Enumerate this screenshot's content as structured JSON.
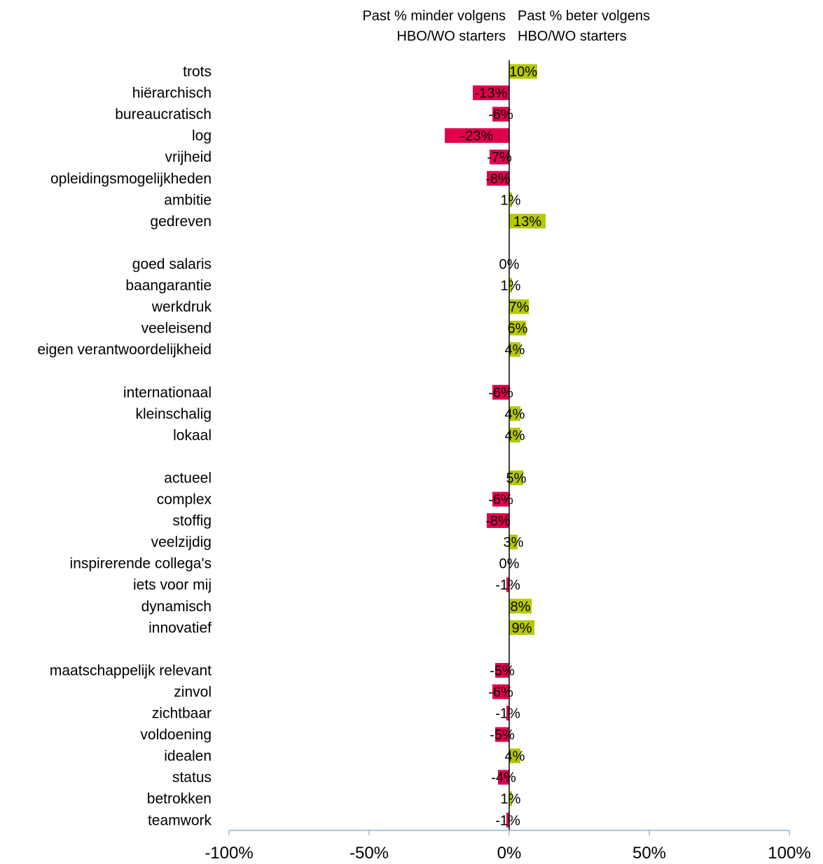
{
  "chart_data": {
    "type": "bar",
    "orientation": "horizontal",
    "header_left": [
      "Past % minder volgens",
      "HBO/WO starters"
    ],
    "header_right": [
      "Past % beter volgens",
      "HBO/WO starters"
    ],
    "groups": [
      [
        {
          "label": "trots",
          "value": 10
        },
        {
          "label": "hiërarchisch",
          "value": -13
        },
        {
          "label": "bureaucratisch",
          "value": -6
        },
        {
          "label": "log",
          "value": -23
        },
        {
          "label": "vrijheid",
          "value": -7
        },
        {
          "label": "opleidingsmogelijkheden",
          "value": -8
        },
        {
          "label": "ambitie",
          "value": 1
        },
        {
          "label": "gedreven",
          "value": 13
        }
      ],
      [
        {
          "label": "goed salaris",
          "value": 0
        },
        {
          "label": "baangarantie",
          "value": 1
        },
        {
          "label": "werkdruk",
          "value": 7
        },
        {
          "label": "veeleisend",
          "value": 6
        },
        {
          "label": "eigen verantwoordelijkheid",
          "value": 4
        }
      ],
      [
        {
          "label": "internationaal",
          "value": -6
        },
        {
          "label": "kleinschalig",
          "value": 4
        },
        {
          "label": "lokaal",
          "value": 4
        }
      ],
      [
        {
          "label": "actueel",
          "value": 5
        },
        {
          "label": "complex",
          "value": -6
        },
        {
          "label": "stoffig",
          "value": -8
        },
        {
          "label": "veelzijdig",
          "value": 3
        },
        {
          "label": "inspirerende collega's",
          "value": 0
        },
        {
          "label": "iets voor mij",
          "value": -1
        },
        {
          "label": "dynamisch",
          "value": 8
        },
        {
          "label": "innovatief",
          "value": 9
        }
      ],
      [
        {
          "label": "maatschappelijk relevant",
          "value": -5
        },
        {
          "label": "zinvol",
          "value": -6
        },
        {
          "label": "zichtbaar",
          "value": -1
        },
        {
          "label": "voldoening",
          "value": -5
        },
        {
          "label": "idealen",
          "value": 4
        },
        {
          "label": "status",
          "value": -4
        },
        {
          "label": "betrokken",
          "value": 1
        },
        {
          "label": "teamwork",
          "value": -1
        }
      ]
    ],
    "value_suffix": "%",
    "xlim": [
      -100,
      100
    ],
    "x_ticks": [
      -100,
      -50,
      0,
      50,
      100
    ],
    "x_tick_labels": [
      "-100%",
      "-50%",
      "0%",
      "50%",
      "100%"
    ],
    "colors": {
      "positive": "#b5c900",
      "negative": "#e0004d",
      "axis": "#000000",
      "x_axis": "#8eb4d4"
    },
    "grid": false,
    "legend": "none"
  }
}
